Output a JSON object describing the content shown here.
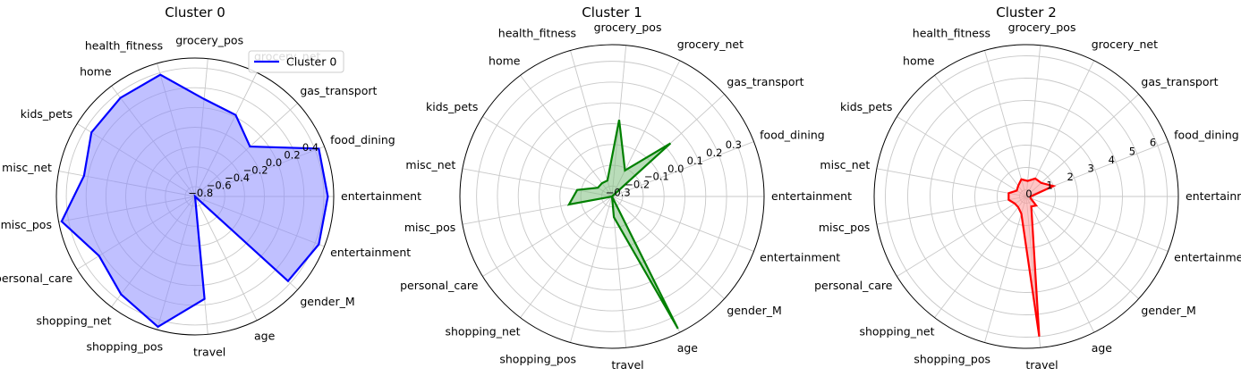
{
  "chart_data": [
    {
      "type": "radar",
      "title": "Cluster 0",
      "categories": [
        "entertainment",
        "food_dining",
        "gas_transport",
        "grocery_net",
        "grocery_pos",
        "health_fitness",
        "home",
        "kids_pets",
        "misc_net",
        "misc_pos",
        "personal_care",
        "shopping_net",
        "shopping_pos",
        "travel",
        "age",
        "gender_M",
        "entertainment"
      ],
      "rticks": [
        -0.8,
        -0.6,
        -0.4,
        -0.2,
        0.0,
        0.2,
        0.4
      ],
      "rtick_labels": [
        "−0.8",
        "−0.6",
        "−0.4",
        "−0.2",
        "0.0",
        "0.2",
        "0.4"
      ],
      "rlim": [
        -0.9,
        0.5
      ],
      "series": [
        {
          "name": "Cluster 0",
          "color": "#0000ff",
          "fill": "#8c8cff",
          "values": [
            0.44,
            0.44,
            -0.15,
            0.02,
            0.09,
            0.38,
            0.35,
            0.33,
            0.24,
            0.47,
            0.24,
            0.34,
            0.47,
            0.14,
            -0.9,
            0.37,
            0.44
          ]
        }
      ],
      "legend": "upper-right"
    },
    {
      "type": "radar",
      "title": "Cluster 1",
      "categories": [
        "entertainment",
        "food_dining",
        "gas_transport",
        "grocery_net",
        "grocery_pos",
        "health_fitness",
        "home",
        "kids_pets",
        "misc_net",
        "misc_pos",
        "personal_care",
        "shopping_net",
        "shopping_pos",
        "travel",
        "age",
        "gender_M",
        "entertainment"
      ],
      "rticks": [
        -0.3,
        -0.2,
        -0.1,
        0.0,
        0.1,
        0.2,
        0.3
      ],
      "rtick_labels": [
        "−0.3",
        "−0.2",
        "−0.1",
        "0.0",
        "0.1",
        "0.2",
        "0.3"
      ],
      "rlim": [
        -0.35,
        0.38
      ],
      "series": [
        {
          "name": "",
          "color": "#008000",
          "fill": "#80c080",
          "values": [
            -0.35,
            -0.35,
            0.03,
            -0.21,
            0.02,
            -0.27,
            -0.27,
            -0.27,
            -0.18,
            -0.14,
            -0.35,
            -0.35,
            -0.35,
            -0.25,
            0.36,
            -0.35,
            -0.35
          ]
        }
      ]
    },
    {
      "type": "radar",
      "title": "Cluster 2",
      "categories": [
        "entertainment",
        "food_dining",
        "gas_transport",
        "grocery_net",
        "grocery_pos",
        "health_fitness",
        "home",
        "kids_pets",
        "misc_net",
        "misc_pos",
        "personal_care",
        "shopping_net",
        "shopping_pos",
        "travel",
        "age",
        "gender_M",
        "entertainment"
      ],
      "rticks": [
        0,
        1,
        2,
        3,
        4,
        5,
        6
      ],
      "rtick_labels": [
        "0",
        "1",
        "2",
        "3",
        "4",
        "5",
        "6"
      ],
      "rlim": [
        -0.3,
        6.5
      ],
      "series": [
        {
          "name": "",
          "color": "#ff0000",
          "fill": "#ff9696",
          "values": [
            -0.1,
            1.0,
            0.6,
            0.6,
            0.4,
            0.5,
            0.3,
            0.2,
            0.5,
            0.5,
            0.3,
            0.3,
            0.5,
            6.0,
            0.2,
            0.3,
            -0.1
          ]
        }
      ]
    }
  ]
}
